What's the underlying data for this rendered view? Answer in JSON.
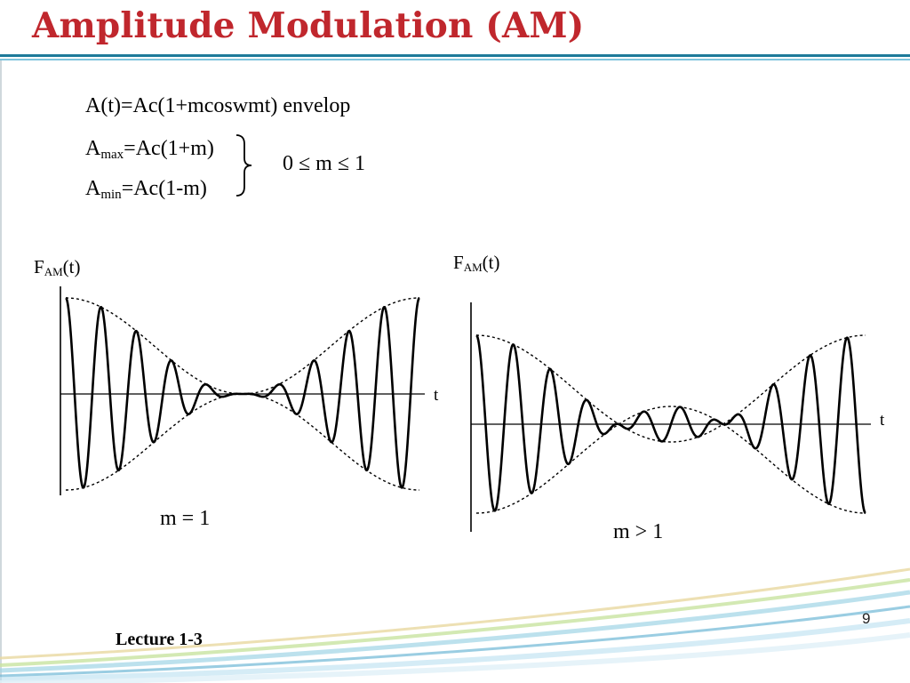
{
  "slide": {
    "title": "Amplitude Modulation (AM)",
    "page_number": "9",
    "footer": "Lecture 1-3"
  },
  "formulas": {
    "envelope": "A(t)=Ac(1+mcoswmt) envelop",
    "amax": {
      "base": "A",
      "sub": "max",
      "rest": "=Ac(1+m)"
    },
    "amin": {
      "base": "A",
      "sub": "min",
      "rest": "=Ac(1-m)"
    },
    "range": "0 ≤ m ≤ 1"
  },
  "graphs": [
    {
      "ylabel": {
        "base": "F",
        "sub": "AM",
        "rest": "(t)"
      },
      "xlabel": "t",
      "caption": "m = 1",
      "m": 1
    },
    {
      "ylabel": {
        "base": "F",
        "sub": "AM",
        "rest": "(t)"
      },
      "xlabel": "t",
      "caption": "m > 1",
      "m": 1.5
    }
  ],
  "colors": {
    "title": "#c0272d",
    "rule": "#1d7a9a"
  }
}
